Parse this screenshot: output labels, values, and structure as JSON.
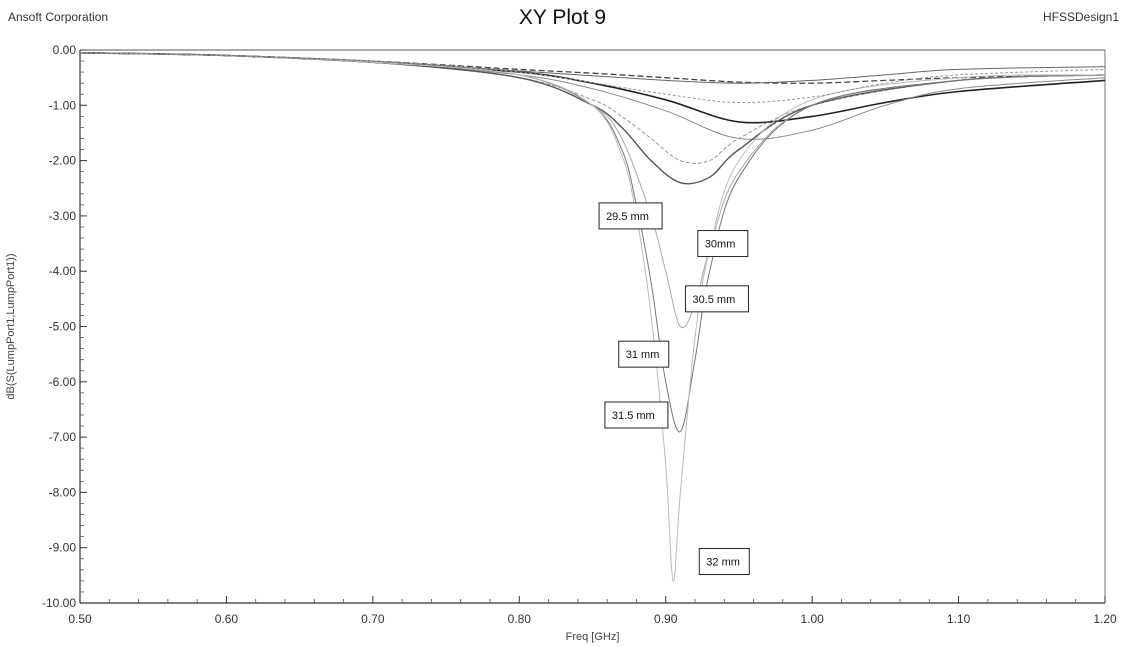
{
  "header": {
    "left": "Ansoft Corporation",
    "title": "XY Plot 9",
    "right": "HFSSDesign1"
  },
  "chart_data": {
    "type": "line",
    "title": "XY Plot 9",
    "xlabel": "Freq [GHz]",
    "ylabel": "dB(S(LumpPort1,LumpPort1))",
    "xlim": [
      0.5,
      1.2
    ],
    "ylim": [
      -10.0,
      0.0
    ],
    "x_ticks": [
      "0.50",
      "0.60",
      "0.70",
      "0.80",
      "0.90",
      "1.00",
      "1.10",
      "1.20"
    ],
    "y_ticks": [
      "0.00",
      "-1.00",
      "-2.00",
      "-3.00",
      "-4.00",
      "-5.00",
      "-6.00",
      "-7.00",
      "-8.00",
      "-9.00",
      "-10.00"
    ],
    "grid": false,
    "annotations": [
      {
        "text": "29.5 mm",
        "x": 0.876,
        "y": -3.0
      },
      {
        "text": "30mm",
        "x": 0.939,
        "y": -3.5
      },
      {
        "text": "30.5 mm",
        "x": 0.935,
        "y": -4.5
      },
      {
        "text": "31 mm",
        "x": 0.885,
        "y": -5.5
      },
      {
        "text": "31.5 mm",
        "x": 0.88,
        "y": -6.6
      },
      {
        "text": "32 mm",
        "x": 0.94,
        "y": -9.25
      }
    ],
    "series": [
      {
        "x": [
          0.5,
          0.6,
          0.7,
          0.8,
          0.85,
          0.9,
          0.95,
          1.0,
          1.05,
          1.1,
          1.2
        ],
        "y": [
          -0.05,
          -0.1,
          -0.2,
          -0.35,
          -0.42,
          -0.5,
          -0.58,
          -0.6,
          -0.55,
          -0.5,
          -0.45
        ]
      },
      {
        "x": [
          0.5,
          0.6,
          0.7,
          0.8,
          0.85,
          0.9,
          0.95,
          1.0,
          1.05,
          1.1,
          1.2
        ],
        "y": [
          -0.05,
          -0.1,
          -0.22,
          -0.4,
          -0.6,
          -0.9,
          -1.3,
          -1.2,
          -0.95,
          -0.75,
          -0.55
        ]
      },
      {
        "x": [
          0.5,
          0.6,
          0.7,
          0.8,
          0.85,
          0.9,
          0.95,
          1.0,
          1.05,
          1.1,
          1.2
        ],
        "y": [
          -0.05,
          -0.1,
          -0.22,
          -0.45,
          -0.7,
          -1.1,
          -1.6,
          -1.45,
          -1.0,
          -0.7,
          -0.5
        ]
      },
      {
        "x": [
          0.5,
          0.6,
          0.7,
          0.8,
          0.85,
          0.87,
          0.89,
          0.91,
          0.93,
          0.95,
          1.0,
          1.1,
          1.2
        ],
        "y": [
          -0.05,
          -0.1,
          -0.22,
          -0.5,
          -0.9,
          -1.2,
          -1.6,
          -2.0,
          -2.0,
          -1.6,
          -1.0,
          -0.55,
          -0.45
        ]
      },
      {
        "x": [
          0.5,
          0.6,
          0.7,
          0.8,
          0.85,
          0.87,
          0.89,
          0.91,
          0.93,
          0.95,
          1.0,
          1.1,
          1.2
        ],
        "y": [
          -0.05,
          -0.1,
          -0.22,
          -0.5,
          -1.0,
          -1.4,
          -2.0,
          -2.4,
          -2.3,
          -1.8,
          -1.0,
          -0.55,
          -0.45
        ]
      },
      {
        "x": [
          0.5,
          0.6,
          0.7,
          0.8,
          0.85,
          0.87,
          0.89,
          0.9,
          0.91,
          0.92,
          0.93,
          0.95,
          1.0,
          1.1,
          1.2
        ],
        "y": [
          -0.05,
          -0.1,
          -0.22,
          -0.45,
          -1.0,
          -1.6,
          -3.0,
          -4.0,
          -5.0,
          -4.6,
          -3.6,
          -2.2,
          -1.0,
          -0.55,
          -0.45
        ]
      },
      {
        "x": [
          0.5,
          0.6,
          0.7,
          0.8,
          0.85,
          0.87,
          0.88,
          0.89,
          0.9,
          0.91,
          0.92,
          0.93,
          0.95,
          1.0,
          1.1,
          1.2
        ],
        "y": [
          -0.05,
          -0.1,
          -0.22,
          -0.45,
          -1.0,
          -1.8,
          -2.8,
          -4.2,
          -6.0,
          -6.9,
          -5.6,
          -4.0,
          -2.3,
          -1.0,
          -0.55,
          -0.45
        ]
      },
      {
        "x": [
          0.5,
          0.6,
          0.7,
          0.8,
          0.85,
          0.87,
          0.88,
          0.89,
          0.9,
          0.905,
          0.91,
          0.92,
          0.93,
          0.95,
          1.0,
          1.1,
          1.2
        ],
        "y": [
          -0.05,
          -0.1,
          -0.22,
          -0.45,
          -1.0,
          -1.9,
          -3.0,
          -4.8,
          -7.5,
          -9.6,
          -8.0,
          -5.2,
          -3.6,
          -2.0,
          -0.9,
          -0.5,
          -0.45
        ]
      },
      {
        "x": [
          0.5,
          0.6,
          0.7,
          0.8,
          0.9,
          0.95,
          1.0,
          1.05,
          1.1,
          1.2
        ],
        "y": [
          -0.05,
          -0.1,
          -0.2,
          -0.38,
          -0.55,
          -0.6,
          -0.55,
          -0.45,
          -0.35,
          -0.3
        ]
      },
      {
        "x": [
          0.5,
          0.6,
          0.7,
          0.8,
          0.9,
          0.95,
          1.0,
          1.05,
          1.1,
          1.2
        ],
        "y": [
          -0.05,
          -0.1,
          -0.2,
          -0.4,
          -0.8,
          -0.95,
          -0.85,
          -0.6,
          -0.45,
          -0.35
        ]
      }
    ]
  }
}
